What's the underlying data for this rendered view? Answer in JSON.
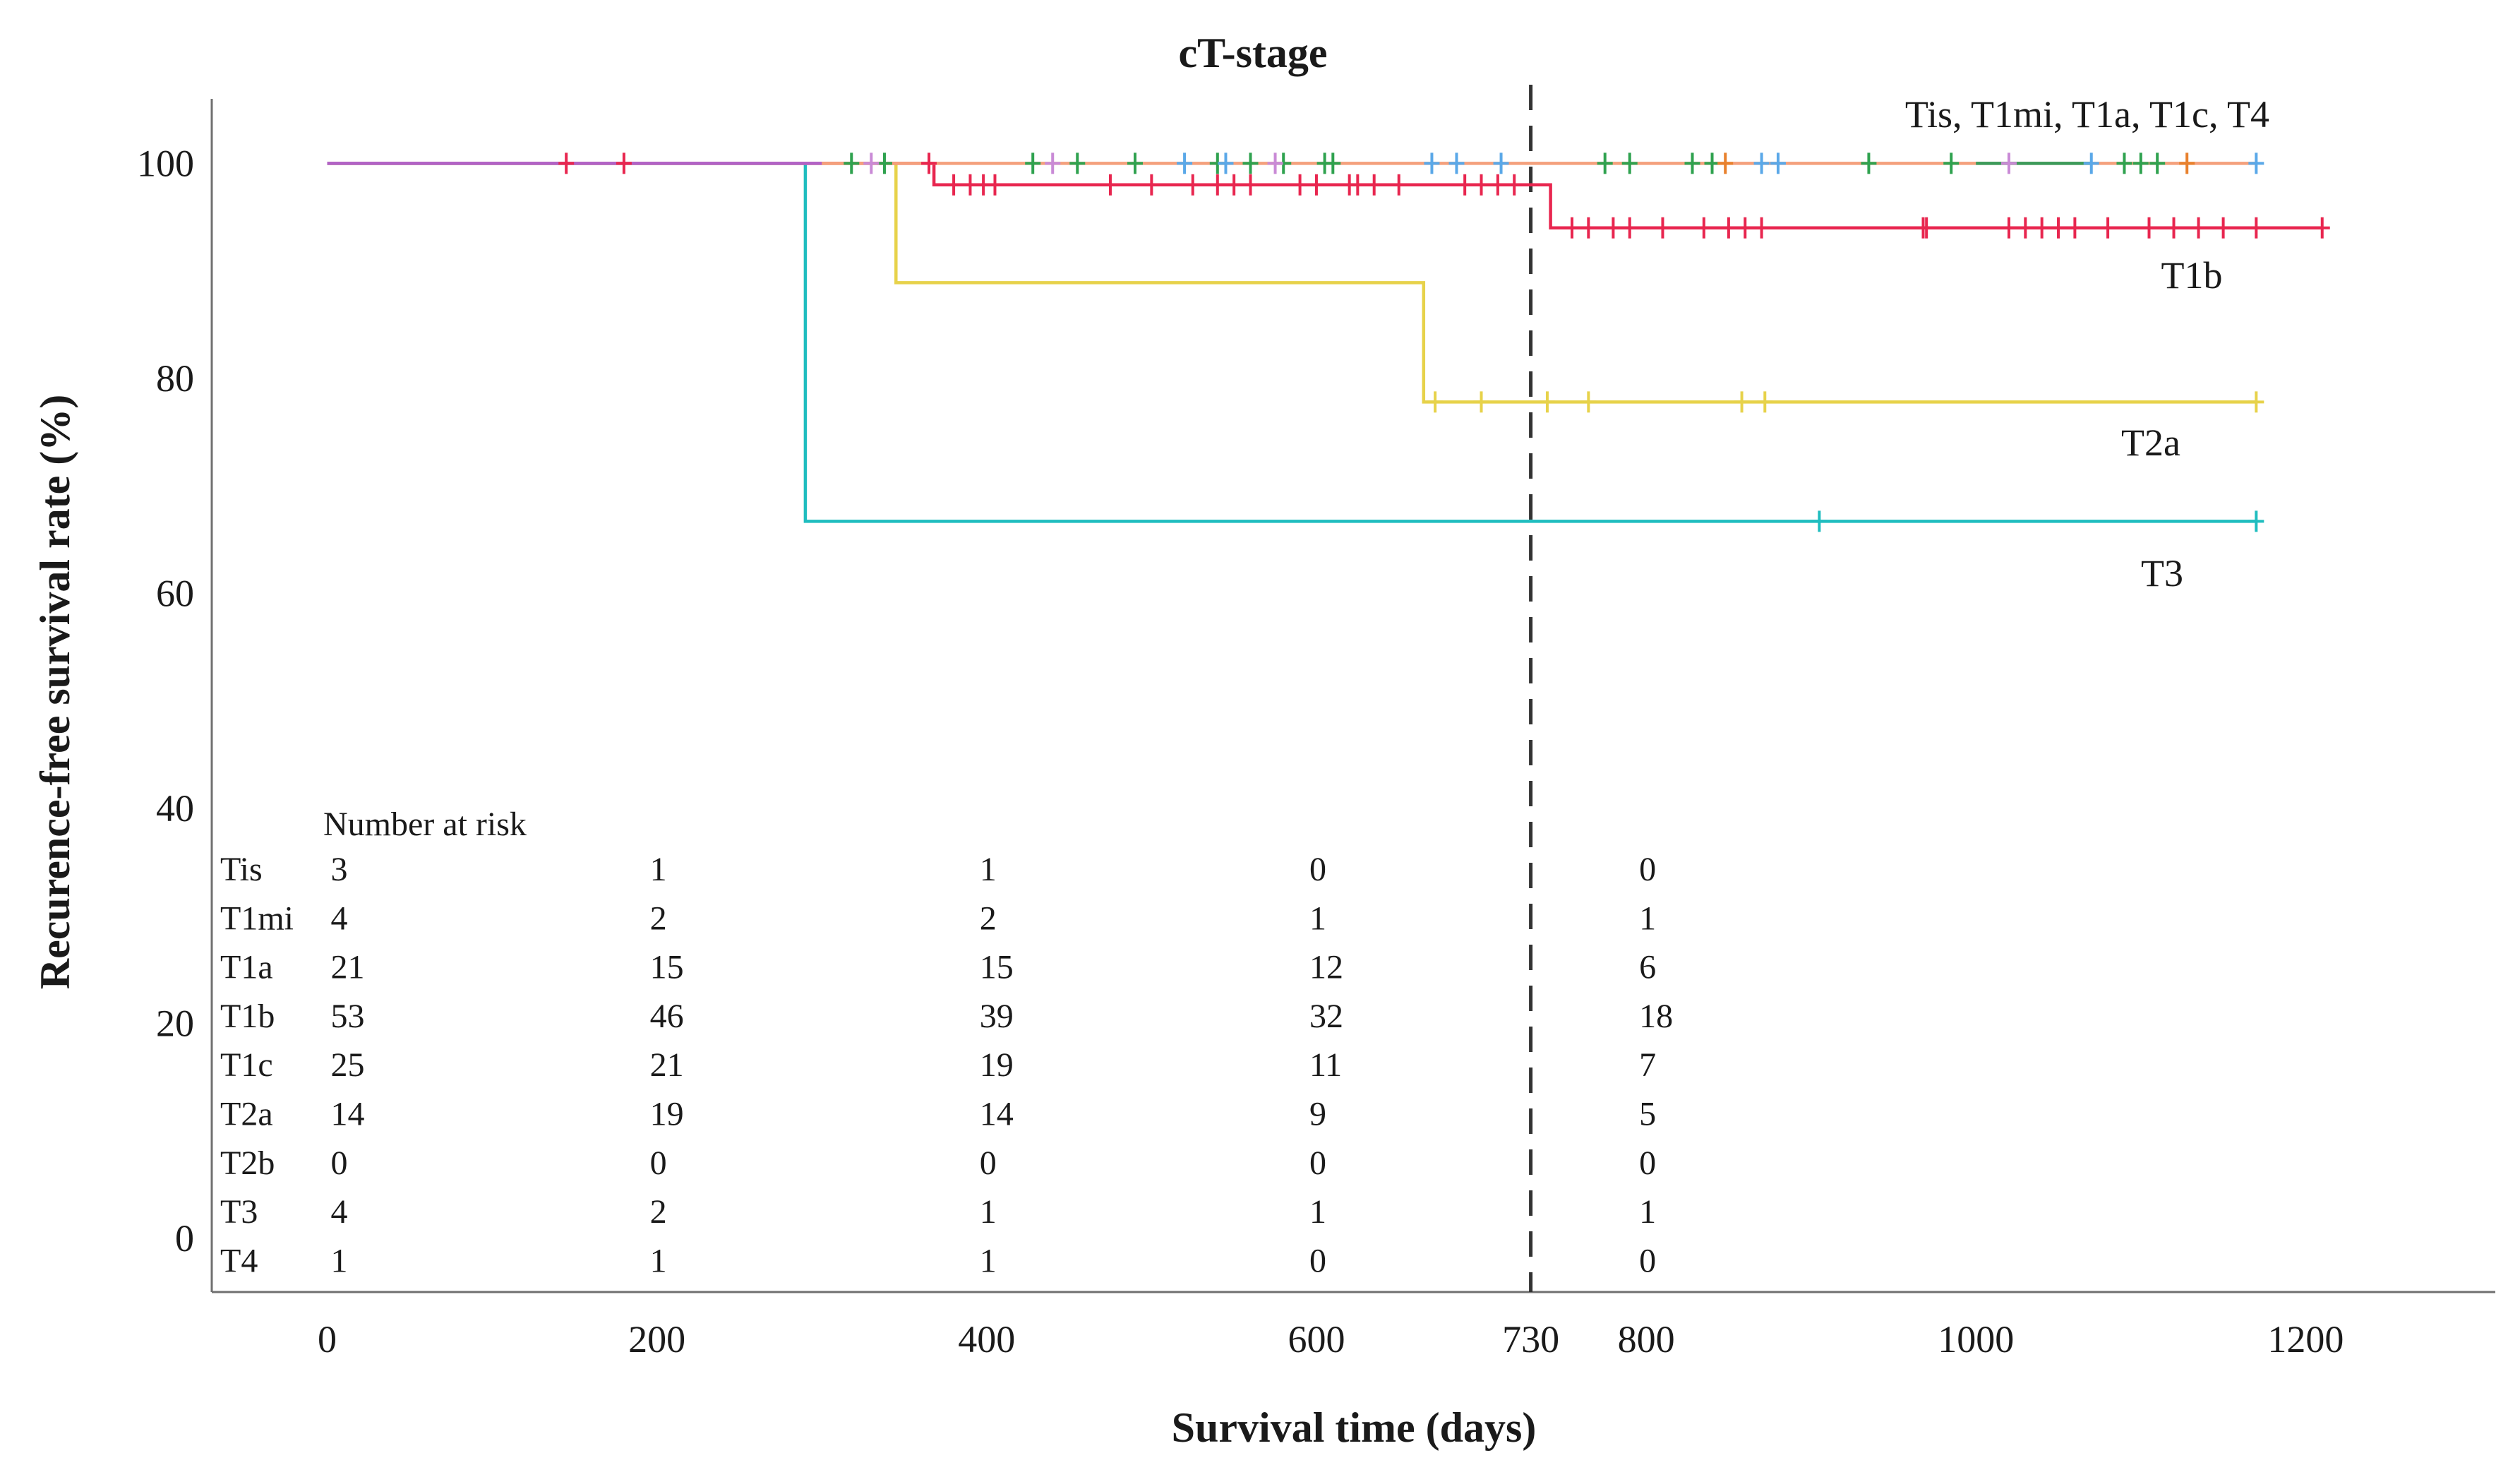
{
  "chart_data": {
    "type": "line",
    "subtype": "kaplan-meier",
    "title": "cT-stage",
    "xlabel": "Survival time (days)",
    "ylabel": "Recurence-free survival rate (%)",
    "xlim": [
      -70,
      1315
    ],
    "ylim": [
      -5,
      106
    ],
    "xticks": [
      0,
      200,
      400,
      600,
      730,
      800,
      1000,
      1200
    ],
    "xtick_labels": [
      "0",
      "200",
      "400",
      "600",
      "730",
      "800",
      "1000",
      "1200"
    ],
    "yticks": [
      0,
      20,
      40,
      60,
      80,
      100
    ],
    "ytick_labels": [
      "0",
      "20",
      "40",
      "60",
      "80",
      "100"
    ],
    "reference_line_x": 730,
    "series": [
      {
        "name": "Tis, T1mi, T1a, T1c, T4",
        "label": "Tis, T1mi, T1a, T1c, T4",
        "color": "#f4a07c",
        "steps": [
          [
            0,
            100
          ],
          [
            1170,
            100
          ]
        ],
        "censor_groups": [
          {
            "color": "#2fa24f",
            "x": [
              318,
              338,
              428,
              455,
              490,
              540,
              560,
              580,
              605,
              610,
              775,
              790,
              828,
              840,
              935,
              985,
              1090,
              1100,
              1110
            ]
          },
          {
            "color": "#e8812d",
            "x": [
              848,
              1128
            ]
          },
          {
            "color": "#5aa8e8",
            "x": [
              520,
              545,
              670,
              685,
              712,
              870,
              880,
              1070,
              1170
            ]
          },
          {
            "color": "#c98ad6",
            "x": [
              330,
              440,
              575,
              1020
            ]
          }
        ]
      },
      {
        "name": "T1b",
        "label": "T1b",
        "color": "#e8264f",
        "steps": [
          [
            0,
            100
          ],
          [
            368,
            100
          ],
          [
            368,
            98
          ],
          [
            742,
            98
          ],
          [
            742,
            94
          ],
          [
            1210,
            94
          ]
        ],
        "censor_groups": [
          {
            "color": "#e8264f",
            "x": [
              145,
              180,
              365,
              380,
              390,
              398,
              405,
              475,
              500,
              525,
              540,
              550,
              560,
              590,
              600,
              620,
              625,
              635,
              650,
              690,
              700,
              710,
              720,
              755,
              765,
              780,
              790,
              810,
              835,
              850,
              860,
              870,
              968,
              970,
              1020,
              1030,
              1040,
              1050,
              1060,
              1080,
              1105,
              1120,
              1135,
              1150,
              1170,
              1210
            ]
          }
        ]
      },
      {
        "name": "T2a",
        "label": "T2a",
        "color": "#e7d24a",
        "steps": [
          [
            0,
            100
          ],
          [
            345,
            100
          ],
          [
            345,
            88.9
          ],
          [
            665,
            88.9
          ],
          [
            665,
            77.8
          ],
          [
            1170,
            77.8
          ]
        ],
        "censor_groups": [
          {
            "color": "#e7d24a",
            "x": [
              672,
              700,
              740,
              765,
              858,
              872,
              1170
            ]
          }
        ]
      },
      {
        "name": "T3",
        "label": "T3",
        "color": "#1fbdbf",
        "steps": [
          [
            0,
            100
          ],
          [
            290,
            100
          ],
          [
            290,
            66.7
          ],
          [
            1170,
            66.7
          ]
        ],
        "censor_groups": [
          {
            "color": "#1fbdbf",
            "x": [
              905,
              1170
            ]
          }
        ]
      },
      {
        "name": "T1c",
        "label": "",
        "color": "#3a9a5a",
        "steps": [
          [
            1000,
            100
          ],
          [
            1070,
            100
          ]
        ],
        "censor_groups": []
      },
      {
        "name": "Tis-T1mi-T4 base",
        "label": "",
        "color": "#b062c8",
        "steps": [
          [
            0,
            100
          ],
          [
            300,
            100
          ]
        ],
        "censor_groups": []
      }
    ],
    "risk_table": {
      "title": "Number at risk",
      "columns_x": [
        0,
        200,
        400,
        600,
        800
      ],
      "rows": [
        {
          "label": "Tis",
          "values": [
            "3",
            "1",
            "1",
            "0",
            "0"
          ]
        },
        {
          "label": "T1mi",
          "values": [
            "4",
            "2",
            "2",
            "1",
            "1"
          ]
        },
        {
          "label": "T1a",
          "values": [
            "21",
            "15",
            "15",
            "12",
            "6"
          ]
        },
        {
          "label": "T1b",
          "values": [
            "53",
            "46",
            "39",
            "32",
            "18"
          ]
        },
        {
          "label": "T1c",
          "values": [
            "25",
            "21",
            "19",
            "11",
            "7"
          ]
        },
        {
          "label": "T2a",
          "values": [
            "14",
            "19",
            "14",
            "9",
            "5"
          ]
        },
        {
          "label": "T2b",
          "values": [
            "0",
            "0",
            "0",
            "0",
            "0"
          ]
        },
        {
          "label": "T3",
          "values": [
            "4",
            "2",
            "1",
            "1",
            "1"
          ]
        },
        {
          "label": "T4",
          "values": [
            "1",
            "1",
            "1",
            "0",
            "0"
          ]
        }
      ]
    }
  }
}
